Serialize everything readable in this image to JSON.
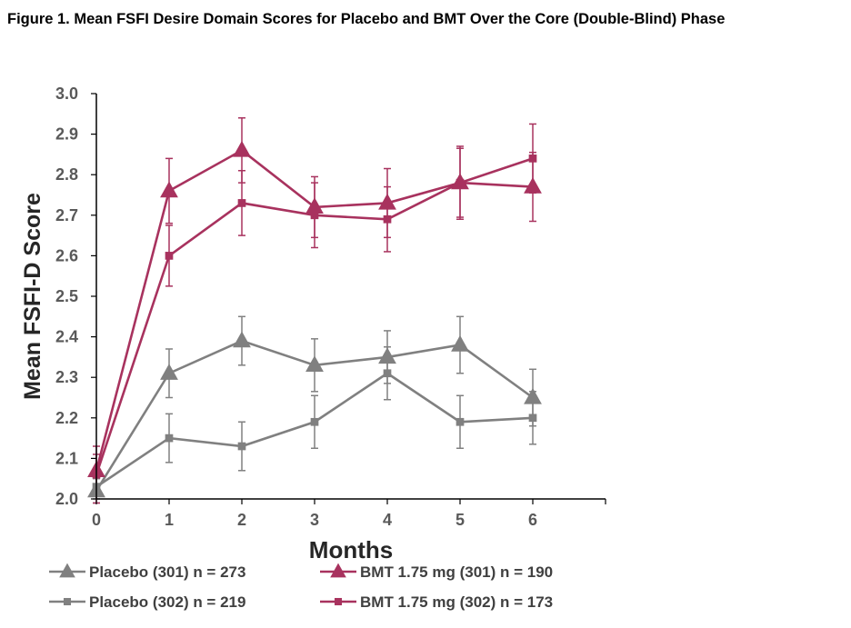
{
  "title": "Figure 1. Mean FSFI Desire Domain Scores for Placebo and BMT Over the Core (Double-Blind) Phase",
  "colors": {
    "placebo": "#808080",
    "bmt": "#A8325E",
    "axis": "#000000",
    "tick_text": "#595959"
  },
  "chart_data": {
    "type": "line",
    "title": "Figure 1. Mean FSFI Desire Domain Scores for Placebo and BMT Over the Core (Double-Blind) Phase",
    "xlabel": "Months",
    "ylabel": "Mean FSFI-D Score",
    "x": [
      0,
      1,
      2,
      3,
      4,
      5,
      6
    ],
    "xticks": [
      "0",
      "1",
      "2",
      "3",
      "4",
      "5",
      "6"
    ],
    "yticks": [
      "2.0",
      "2.1",
      "2.2",
      "2.3",
      "2.4",
      "2.5",
      "2.6",
      "2.7",
      "2.8",
      "2.9",
      "3.0"
    ],
    "xlim": [
      0,
      7
    ],
    "ylim": [
      2.0,
      3.0
    ],
    "grid": false,
    "legend_position": "bottom",
    "series": [
      {
        "name": "Placebo (301) n = 273",
        "marker": "triangle",
        "color": "#808080",
        "values": [
          2.02,
          2.31,
          2.39,
          2.33,
          2.35,
          2.38,
          2.25
        ],
        "errors": [
          0.03,
          0.06,
          0.06,
          0.065,
          0.065,
          0.07,
          0.07
        ]
      },
      {
        "name": "BMT 1.75 mg (301) n = 190",
        "marker": "triangle",
        "color": "#A8325E",
        "values": [
          2.07,
          2.76,
          2.86,
          2.72,
          2.73,
          2.78,
          2.77
        ],
        "errors": [
          0.04,
          0.08,
          0.08,
          0.075,
          0.085,
          0.09,
          0.085
        ]
      },
      {
        "name": "Placebo (302) n = 219",
        "marker": "square",
        "color": "#808080",
        "values": [
          2.03,
          2.15,
          2.13,
          2.19,
          2.31,
          2.19,
          2.2
        ],
        "errors": [
          0.03,
          0.06,
          0.06,
          0.065,
          0.065,
          0.065,
          0.065
        ]
      },
      {
        "name": "BMT 1.75 mg (302) n = 173",
        "marker": "square",
        "color": "#A8325E",
        "values": [
          2.06,
          2.6,
          2.73,
          2.7,
          2.69,
          2.78,
          2.84
        ],
        "errors": [
          0.07,
          0.075,
          0.08,
          0.08,
          0.08,
          0.085,
          0.085
        ]
      }
    ]
  }
}
